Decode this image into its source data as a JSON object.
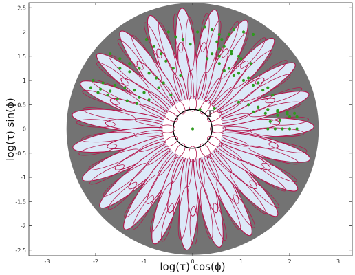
{
  "chart_data": {
    "type": "scatter",
    "title": "",
    "xlabel": "log(τ) cos(ϕ)",
    "ylabel": "log(τ) sin(ϕ)",
    "xlim": [
      -3.3,
      3.3
    ],
    "ylim": [
      -2.6,
      2.6
    ],
    "x_ticks": [
      -3,
      -2,
      -1,
      0,
      1,
      2,
      3
    ],
    "x_tick_labels": [
      "-3",
      "-2",
      "-1",
      "0",
      "1",
      "2",
      "3"
    ],
    "y_ticks": [
      -2.5,
      -2,
      -1.5,
      -1,
      -0.5,
      0,
      0.5,
      1,
      1.5,
      2,
      2.5
    ],
    "y_tick_labels": [
      "-2.5",
      "-2",
      "-1.5",
      "-1",
      "-0.5",
      "0",
      "0.5",
      "1",
      "1.5",
      "2",
      "2.5"
    ],
    "grid": false,
    "annotation": "Γ",
    "outer_disk_radius": 2.6,
    "gamma_circle_radius": 0.4,
    "colors": {
      "disk": "#737373",
      "ellipse_fill": "#dce9f8",
      "ellipse_edge": "#b5174d",
      "points": "#2e9a1e",
      "circle": "#000000"
    },
    "series": [
      {
        "marker": "dot",
        "x": [
          0.0,
          -1.95,
          -1.75,
          -1.55,
          -1.35,
          -1.15,
          -2.05,
          -1.85,
          -1.6,
          -1.4,
          -1.2,
          -1.0,
          -1.7,
          -1.5,
          -1.3,
          -1.1,
          -0.9,
          -0.75,
          -0.6,
          -0.95,
          -0.8,
          -0.65,
          -0.55,
          -0.4,
          -0.25,
          -0.5,
          -0.35,
          -0.2,
          -0.05,
          0.1,
          0.25,
          0.4,
          0.55,
          0.5,
          0.65,
          0.8,
          0.95,
          0.55,
          0.75,
          0.95,
          1.15,
          1.35,
          1.55,
          0.65,
          0.85,
          1.05,
          1.25,
          1.45,
          1.65,
          1.35,
          1.55,
          1.75,
          1.95,
          2.15,
          1.25,
          1.5,
          1.75,
          2.0,
          1.55,
          1.7,
          1.85,
          2.0,
          2.15,
          0.55,
          0.4,
          0.3,
          0.6,
          0.75,
          0.85,
          1.05,
          1.25,
          0.45,
          0.95,
          1.15,
          1.35,
          1.55,
          1.75,
          1.95,
          2.1,
          0.55,
          1.2,
          1.0,
          0.8,
          -1.5,
          -1.3,
          -0.7,
          -0.45,
          0.15,
          -2.1,
          -1.9,
          -1.7,
          -1.1,
          -0.9,
          1.6,
          1.8
        ],
        "y": [
          0.0,
          0.75,
          0.7,
          0.62,
          0.58,
          0.52,
          1.0,
          0.95,
          0.9,
          0.85,
          0.8,
          0.75,
          1.55,
          1.45,
          1.35,
          1.25,
          1.15,
          1.05,
          0.95,
          1.85,
          1.7,
          1.55,
          1.4,
          1.25,
          1.1,
          2.0,
          1.9,
          1.85,
          1.75,
          2.0,
          2.1,
          2.05,
          1.95,
          1.8,
          1.7,
          1.6,
          1.5,
          1.35,
          1.25,
          1.15,
          1.05,
          0.95,
          0.85,
          1.2,
          1.1,
          1.0,
          0.9,
          0.8,
          0.7,
          0.45,
          0.4,
          0.35,
          0.3,
          0.25,
          0.35,
          0.32,
          0.28,
          0.25,
          0.0,
          0.0,
          0.0,
          0.0,
          0.0,
          1.65,
          1.55,
          1.45,
          1.85,
          1.95,
          2.05,
          2.0,
          1.95,
          0.42,
          0.55,
          0.5,
          0.45,
          0.4,
          0.38,
          0.35,
          0.32,
          1.5,
          1.35,
          1.45,
          1.55,
          1.25,
          1.18,
          0.85,
          0.7,
          0.4,
          0.85,
          0.82,
          0.78,
          0.65,
          0.6,
          0.15,
          0.18
        ]
      }
    ]
  }
}
